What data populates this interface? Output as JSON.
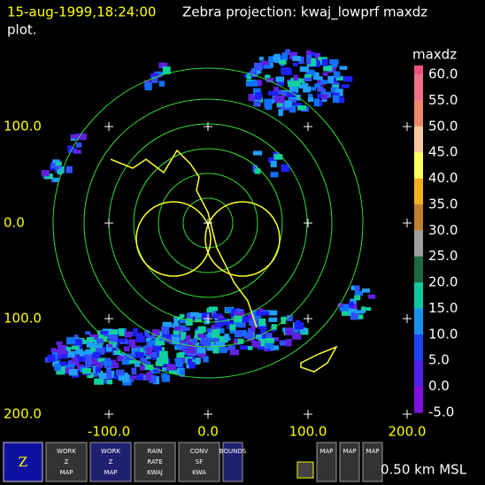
{
  "header": {
    "timestamp": "15-aug-1999,18:24:00",
    "title": "Zebra projection: kwaj_lowprf maxdz",
    "subtitle": "plot."
  },
  "axes": {
    "y_labels": [
      "100.0",
      "0.0",
      "100.0",
      "200.0"
    ],
    "x_labels": [
      "-100.0",
      "0.0",
      "100.0",
      "200.0"
    ]
  },
  "colorbar": {
    "title": "maxdz",
    "labels": [
      "60.0",
      "55.0",
      "50.0",
      "45.0",
      "40.0",
      "35.0",
      "30.0",
      "25.0",
      "20.0",
      "15.0",
      "10.0",
      "5.0",
      "0.0",
      "-5.0"
    ]
  },
  "toolbar": {
    "buttons": [
      [
        "WORK",
        "Z",
        "MAP"
      ],
      [
        "WORK",
        "Z",
        "MAP"
      ],
      [
        "RAIN",
        "RATE",
        "KWAJ"
      ],
      [
        "CONV",
        "SF",
        "KWA"
      ],
      [
        "BOUNDS"
      ],
      [
        "MAP"
      ],
      [
        "MAP"
      ],
      [
        "MAP"
      ]
    ],
    "altitude": "0.50 km MSL"
  }
}
